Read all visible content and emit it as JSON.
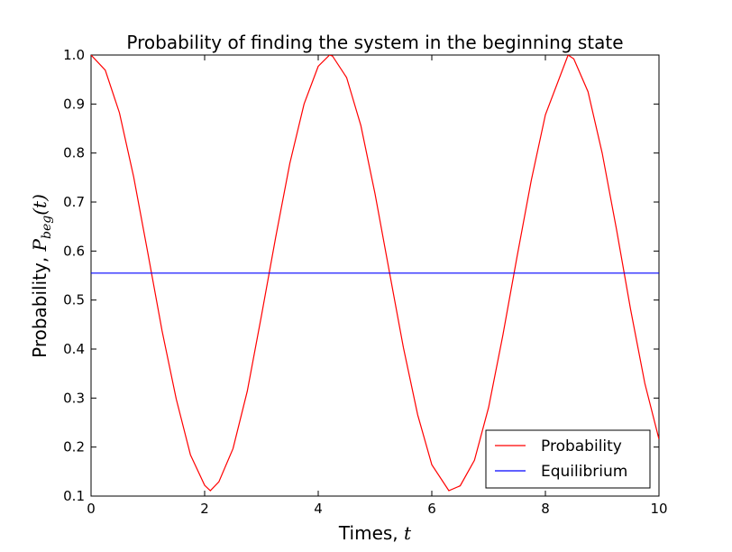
{
  "chart_data": {
    "type": "line",
    "title": "Probability of finding the system in the beginning state",
    "xlabel": {
      "text": "Times, ",
      "math": "t"
    },
    "ylabel": {
      "text": "Probability, ",
      "math": "P",
      "math_sub": "beg",
      "math_suffix": "(t)"
    },
    "xlim": [
      0,
      10
    ],
    "ylim": [
      0.1,
      1.0
    ],
    "xticks": [
      0,
      2,
      4,
      6,
      8,
      10
    ],
    "xtick_labels": [
      "0",
      "2",
      "4",
      "6",
      "8",
      "10"
    ],
    "yticks": [
      0.1,
      0.2,
      0.3,
      0.4,
      0.5,
      0.6,
      0.7,
      0.8,
      0.9,
      1.0
    ],
    "ytick_labels": [
      "0.1",
      "0.2",
      "0.3",
      "0.4",
      "0.5",
      "0.6",
      "0.7",
      "0.8",
      "0.9",
      "1.0"
    ],
    "grid": false,
    "legend_position": "bottom-right",
    "series": [
      {
        "name": "Probability",
        "color": "#ff0000",
        "x": [
          0,
          0.25,
          0.5,
          0.75,
          1.0,
          1.25,
          1.5,
          1.75,
          2.0,
          2.1,
          2.25,
          2.5,
          2.75,
          3.0,
          3.25,
          3.5,
          3.75,
          4.0,
          4.2,
          4.25,
          4.5,
          4.75,
          5.0,
          5.25,
          5.5,
          5.75,
          6.0,
          6.3,
          6.5,
          6.75,
          7.0,
          7.25,
          7.5,
          7.75,
          8.0,
          8.4,
          8.5,
          8.75,
          9.0,
          9.25,
          9.5,
          9.75,
          10.0
        ],
        "y": [
          1.0,
          0.969,
          0.882,
          0.751,
          0.596,
          0.437,
          0.298,
          0.184,
          0.122,
          0.111,
          0.129,
          0.197,
          0.314,
          0.468,
          0.628,
          0.779,
          0.9,
          0.977,
          1.0,
          0.998,
          0.954,
          0.856,
          0.717,
          0.559,
          0.403,
          0.266,
          0.164,
          0.111,
          0.121,
          0.173,
          0.281,
          0.428,
          0.588,
          0.744,
          0.878,
          1.0,
          0.992,
          0.925,
          0.8,
          0.645,
          0.481,
          0.33,
          0.216
        ]
      },
      {
        "name": "Equilibrium",
        "color": "#0000ff",
        "x": [
          0,
          10
        ],
        "y": [
          0.555,
          0.555
        ]
      }
    ]
  }
}
